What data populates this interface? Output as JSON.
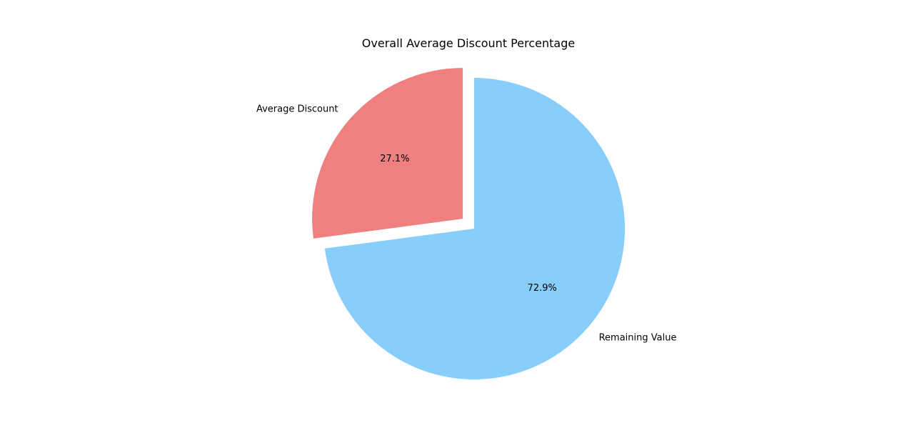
{
  "chart_data": {
    "type": "pie",
    "title": "Overall Average Discount Percentage",
    "slices": [
      {
        "label": "Average Discount",
        "value": 27.1,
        "pct_label": "27.1%",
        "color": "#F08080",
        "explode": 0.1
      },
      {
        "label": "Remaining Value",
        "value": 72.9,
        "pct_label": "72.9%",
        "color": "#87CEFA",
        "explode": 0
      }
    ],
    "start_angle_deg": 90,
    "direction": "counterclockwise"
  }
}
